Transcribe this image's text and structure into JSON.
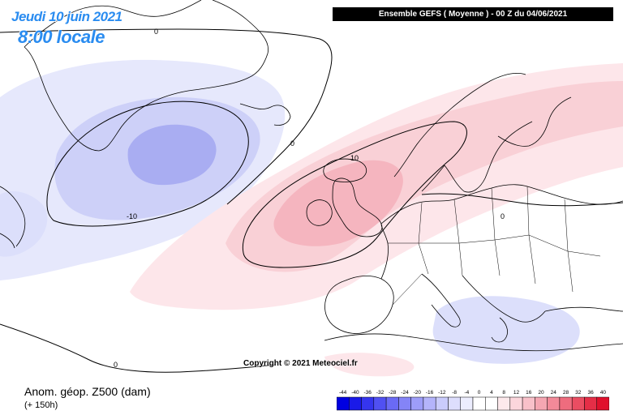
{
  "header": {
    "date": "Jeudi 10 juin 2021",
    "time": "8:00 locale",
    "run": "Ensemble GEFS  ( Moyenne )  - 00 Z du 04/06/2021"
  },
  "copyright": "Copyright © 2021 Meteociel.fr",
  "variable": "Anom. géop. Z500 (dam)",
  "lead_time": "(+ 150h)",
  "contour_labels": [
    "0",
    "0",
    "0",
    "0",
    "10",
    "-10"
  ],
  "legend": {
    "ticks": [
      "-44",
      "-40",
      "-36",
      "-32",
      "-28",
      "-24",
      "-20",
      "-16",
      "-12",
      "-8",
      "-4",
      "0",
      "4",
      "8",
      "12",
      "16",
      "20",
      "24",
      "28",
      "32",
      "36",
      "40"
    ],
    "colors": [
      "#0000e0",
      "#1a1ae8",
      "#3535ee",
      "#5050f2",
      "#6a6af5",
      "#8484f7",
      "#9d9df9",
      "#b4b4fb",
      "#caccfc",
      "#dddefd",
      "#ecedfe",
      "#ffffff",
      "#ffffff",
      "#fde9ec",
      "#fbd6dc",
      "#f8c0c9",
      "#f5a6b2",
      "#f28a99",
      "#ee6c7e",
      "#ea4d62",
      "#e52e47",
      "#e0102c"
    ]
  },
  "colors": {
    "coast": "#000000",
    "neg_light": "#e3e5fc",
    "neg_mid": "#c8ccf7",
    "neg_dark": "#a9aef2",
    "pos_light": "#fde4e8",
    "pos_mid": "#f9cdd3",
    "pos_dark": "#f4b3bd",
    "accent": "#2a8cf0"
  }
}
